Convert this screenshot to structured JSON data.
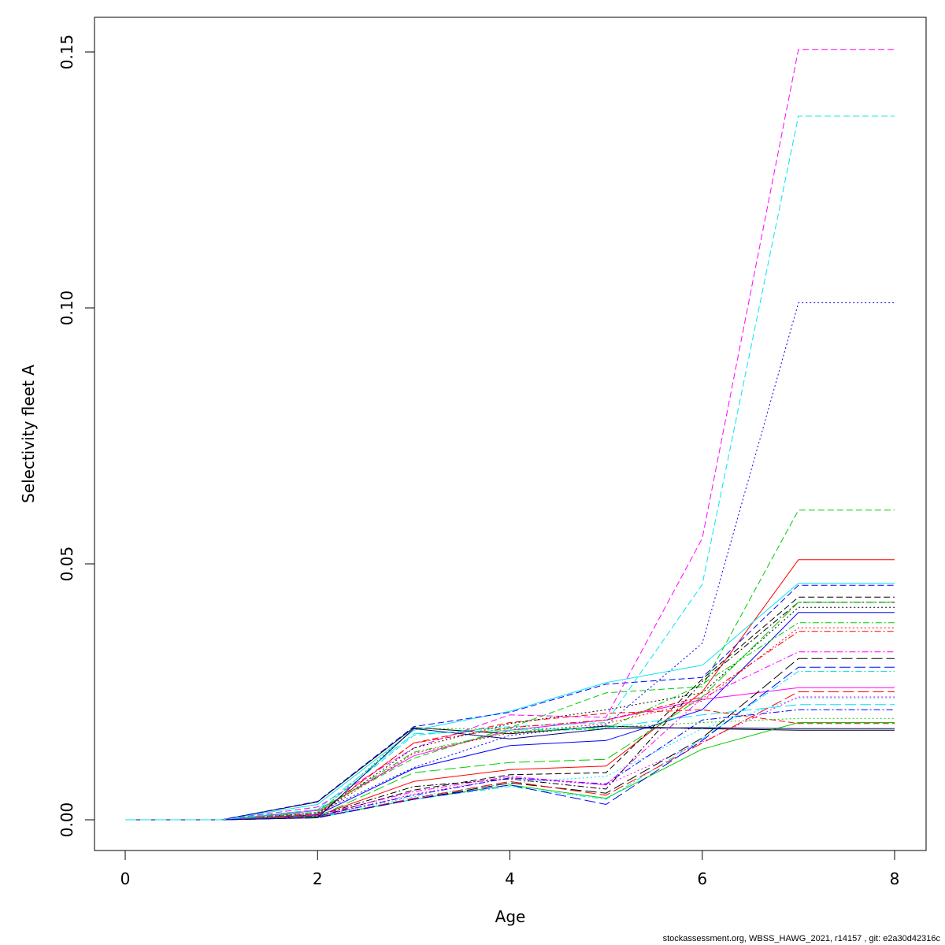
{
  "footer": "stockassessment.org, WBSS_HAWG_2021, r14157 , git: e2a30d42316c",
  "chart_data": {
    "type": "line",
    "title": "",
    "xlabel": "Age",
    "ylabel": "Selectivity fleet A",
    "xlim": [
      0,
      8
    ],
    "ylim": [
      0,
      0.15
    ],
    "x_ticks": [
      "0",
      "2",
      "4",
      "6",
      "8"
    ],
    "y_ticks": [
      "0.00",
      "0.05",
      "0.10",
      "0.15"
    ],
    "x": [
      0,
      1,
      2,
      3,
      4,
      5,
      6,
      7,
      8
    ],
    "series": [
      {
        "name": "s1",
        "color": "#000000",
        "dash": "solid",
        "values": [
          0,
          0,
          0.0035,
          0.018,
          0.0168,
          0.0183,
          0.0178,
          0.0175,
          0.0175
        ]
      },
      {
        "name": "s2",
        "color": "#ff0000",
        "dash": "solid",
        "values": [
          0,
          0,
          0.0008,
          0.0075,
          0.0098,
          0.0105,
          0.025,
          0.0508,
          0.0508
        ]
      },
      {
        "name": "s3",
        "color": "#00cd00",
        "dash": "solid",
        "values": [
          0,
          0,
          0.0005,
          0.004,
          0.0068,
          0.0042,
          0.0138,
          0.019,
          0.019
        ]
      },
      {
        "name": "s4",
        "color": "#0000ff",
        "dash": "solid",
        "values": [
          0,
          0,
          0.001,
          0.01,
          0.0145,
          0.0155,
          0.0215,
          0.0405,
          0.0405
        ]
      },
      {
        "name": "s5",
        "color": "#00e5ee",
        "dash": "solid",
        "values": [
          0,
          0,
          0.003,
          0.0175,
          0.0212,
          0.0268,
          0.0302,
          0.0462,
          0.0462
        ]
      },
      {
        "name": "s6",
        "color": "#ff00ff",
        "dash": "solid",
        "values": [
          0,
          0,
          0.0018,
          0.0125,
          0.0175,
          0.0195,
          0.0235,
          0.0258,
          0.0258
        ]
      },
      {
        "name": "s7",
        "color": "#000000",
        "dash": "dashed",
        "values": [
          0,
          0,
          0.0006,
          0.0058,
          0.0088,
          0.0092,
          0.0275,
          0.0435,
          0.0435
        ]
      },
      {
        "name": "s8",
        "color": "#ff0000",
        "dash": "dashed",
        "values": [
          0,
          0,
          0.0012,
          0.015,
          0.019,
          0.0208,
          0.0215,
          0.0188,
          0.0188
        ]
      },
      {
        "name": "s9",
        "color": "#00cd00",
        "dash": "dashed",
        "values": [
          0,
          0,
          0.002,
          0.012,
          0.018,
          0.0248,
          0.026,
          0.0605,
          0.0605
        ]
      },
      {
        "name": "s10",
        "color": "#0000ff",
        "dash": "dashed",
        "values": [
          0,
          0,
          0.0036,
          0.0182,
          0.021,
          0.0265,
          0.0278,
          0.0458,
          0.0458
        ]
      },
      {
        "name": "s11",
        "color": "#00e5ee",
        "dash": "dashed",
        "values": [
          0,
          0,
          0.0015,
          0.0165,
          0.0182,
          0.019,
          0.046,
          0.1375,
          0.1375
        ]
      },
      {
        "name": "s12",
        "color": "#ff00ff",
        "dash": "dashed",
        "values": [
          0,
          0,
          0.0025,
          0.014,
          0.0205,
          0.02,
          0.055,
          0.1505,
          0.1505
        ]
      },
      {
        "name": "s13",
        "color": "#000000",
        "dash": "dotted",
        "values": [
          0,
          0,
          0.001,
          0.014,
          0.0188,
          0.0215,
          0.0248,
          0.0415,
          0.0415
        ]
      },
      {
        "name": "s14",
        "color": "#ff0000",
        "dash": "dotted",
        "values": [
          0,
          0,
          0.0009,
          0.013,
          0.017,
          0.0188,
          0.0232,
          0.0375,
          0.0375
        ]
      },
      {
        "name": "s15",
        "color": "#00cd00",
        "dash": "dotted",
        "values": [
          0,
          0,
          0.0012,
          0.0178,
          0.0178,
          0.018,
          0.019,
          0.0198,
          0.0198
        ]
      },
      {
        "name": "s16",
        "color": "#0000ff",
        "dash": "dotted",
        "values": [
          0,
          0,
          0.0014,
          0.0102,
          0.0165,
          0.0185,
          0.0345,
          0.101,
          0.101
        ]
      },
      {
        "name": "s17",
        "color": "#00e5ee",
        "dash": "dotted",
        "values": [
          0,
          0,
          0.0005,
          0.0045,
          0.0072,
          0.0085,
          0.0178,
          0.0238,
          0.0238
        ]
      },
      {
        "name": "s18",
        "color": "#ff00ff",
        "dash": "dotted",
        "values": [
          0,
          0,
          0.0006,
          0.005,
          0.0082,
          0.0068,
          0.0152,
          0.024,
          0.024
        ]
      },
      {
        "name": "s19",
        "color": "#000000",
        "dash": "dotdash",
        "values": [
          0,
          0,
          0.0008,
          0.0065,
          0.008,
          0.006,
          0.027,
          0.0425,
          0.0425
        ]
      },
      {
        "name": "s20",
        "color": "#ff0000",
        "dash": "dotdash",
        "values": [
          0,
          0,
          0.001,
          0.015,
          0.018,
          0.0195,
          0.024,
          0.0368,
          0.0368
        ]
      },
      {
        "name": "s21",
        "color": "#00cd00",
        "dash": "dotdash",
        "values": [
          0,
          0,
          0.0015,
          0.0132,
          0.0172,
          0.0178,
          0.0265,
          0.0385,
          0.0385
        ]
      },
      {
        "name": "s22",
        "color": "#0000ff",
        "dash": "dotdash",
        "values": [
          0,
          0,
          0.0007,
          0.0048,
          0.0082,
          0.007,
          0.0195,
          0.0215,
          0.0215
        ]
      },
      {
        "name": "s23",
        "color": "#00e5ee",
        "dash": "dotdash",
        "values": [
          0,
          0,
          0.0004,
          0.004,
          0.0065,
          0.004,
          0.0158,
          0.029,
          0.029
        ]
      },
      {
        "name": "s24",
        "color": "#ff00ff",
        "dash": "dotdash",
        "values": [
          0,
          0,
          0.0009,
          0.0055,
          0.0085,
          0.0068,
          0.0238,
          0.0328,
          0.0328
        ]
      },
      {
        "name": "s25",
        "color": "#000000",
        "dash": "longdash",
        "values": [
          0,
          0,
          0.0005,
          0.004,
          0.0072,
          0.0052,
          0.016,
          0.0315,
          0.0315
        ]
      },
      {
        "name": "s26",
        "color": "#ff0000",
        "dash": "longdash",
        "values": [
          0,
          0,
          0.0004,
          0.0042,
          0.0075,
          0.0048,
          0.015,
          0.025,
          0.025
        ]
      },
      {
        "name": "s27",
        "color": "#00cd00",
        "dash": "longdash",
        "values": [
          0,
          0,
          0.0006,
          0.0092,
          0.0112,
          0.0118,
          0.024,
          0.0425,
          0.0425
        ]
      },
      {
        "name": "s28",
        "color": "#0000ff",
        "dash": "longdash",
        "values": [
          0,
          0,
          0.0004,
          0.004,
          0.0068,
          0.003,
          0.0155,
          0.0298,
          0.0298
        ]
      },
      {
        "name": "s29",
        "color": "#000080",
        "dash": "solid",
        "values": [
          0,
          0,
          0.0004,
          0.0178,
          0.0158,
          0.0178,
          0.018,
          0.0178,
          0.0178
        ]
      },
      {
        "name": "s30",
        "color": "#00e5ee",
        "dash": "longdash",
        "values": [
          0,
          0,
          0.002,
          0.0168,
          0.0175,
          0.018,
          0.0205,
          0.0225,
          0.0225
        ]
      }
    ]
  }
}
